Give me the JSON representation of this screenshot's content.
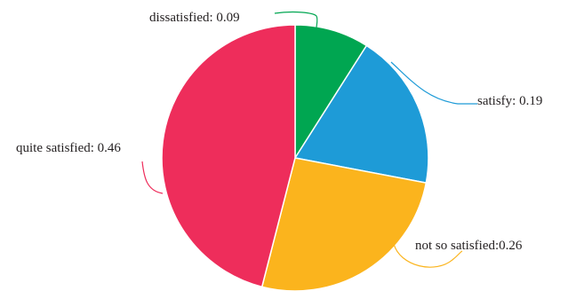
{
  "chart_data": {
    "type": "pie",
    "title": "",
    "slices": [
      {
        "name": "dissatisfied",
        "value": 0.09,
        "label": "dissatisfied: 0.09",
        "color": "#00a651"
      },
      {
        "name": "satisfy",
        "value": 0.19,
        "label": "satisfy: 0.19",
        "color": "#1e9bd7"
      },
      {
        "name": "not so satisfied",
        "value": 0.26,
        "label": "not so satisfied:0.26",
        "color": "#fbb41d"
      },
      {
        "name": "quite satisfied",
        "value": 0.46,
        "label": "quite satisfied: 0.46",
        "color": "#ee2d5b"
      }
    ],
    "start_angle": "12 o'clock",
    "direction": "clockwise",
    "legend": "none",
    "labels": "outside with leader lines"
  }
}
